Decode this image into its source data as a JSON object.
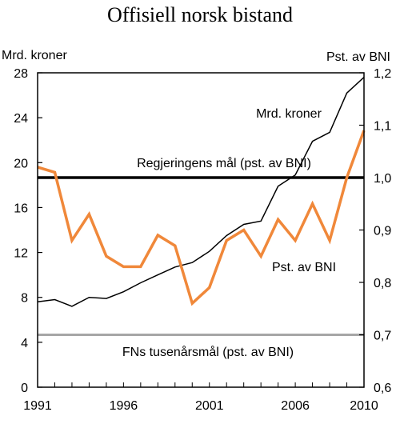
{
  "chart_data": {
    "type": "line",
    "title": "Offisiell norsk bistand",
    "ylabel_left": "Mrd. kroner",
    "ylabel_right": "Pst. av BNI",
    "xlim": [
      1991,
      2010
    ],
    "ylim_left": [
      0,
      28
    ],
    "ylim_right": [
      0.6,
      1.2
    ],
    "x_ticks": [
      {
        "value": 1991,
        "label": "1991"
      },
      {
        "value": 1996,
        "label": "1996"
      },
      {
        "value": 2001,
        "label": "2001"
      },
      {
        "value": 2006,
        "label": "2006"
      },
      {
        "value": 2010,
        "label": "2010"
      }
    ],
    "y_ticks_left": [
      {
        "value": 0,
        "label": "0"
      },
      {
        "value": 4,
        "label": "4"
      },
      {
        "value": 8,
        "label": "8"
      },
      {
        "value": 12,
        "label": "12"
      },
      {
        "value": 16,
        "label": "16"
      },
      {
        "value": 20,
        "label": "20"
      },
      {
        "value": 24,
        "label": "24"
      },
      {
        "value": 28,
        "label": "28"
      }
    ],
    "y_ticks_right": [
      {
        "value": 0.6,
        "label": "0,6"
      },
      {
        "value": 0.7,
        "label": "0,7"
      },
      {
        "value": 0.8,
        "label": "0,8"
      },
      {
        "value": 0.9,
        "label": "0,9"
      },
      {
        "value": 1.0,
        "label": "1,0"
      },
      {
        "value": 1.1,
        "label": "1,1"
      },
      {
        "value": 1.2,
        "label": "1,2"
      }
    ],
    "series": [
      {
        "name": "Mrd. kroner",
        "axis": "left",
        "color": "#000000",
        "x": [
          1991,
          1992,
          1993,
          1994,
          1995,
          1996,
          1997,
          1998,
          1999,
          2000,
          2001,
          2002,
          2003,
          2004,
          2005,
          2006,
          2007,
          2008,
          2009,
          2010
        ],
        "values": [
          7.6,
          7.8,
          7.2,
          8.0,
          7.9,
          8.5,
          9.3,
          10.0,
          10.7,
          11.1,
          12.1,
          13.5,
          14.5,
          14.8,
          17.9,
          18.9,
          21.9,
          22.7,
          26.2,
          27.6
        ]
      },
      {
        "name": "Pst. av BNI",
        "axis": "right",
        "color": "#f0883a",
        "x": [
          1991,
          1992,
          1993,
          1994,
          1995,
          1996,
          1997,
          1998,
          1999,
          2000,
          2001,
          2002,
          2003,
          2004,
          2005,
          2006,
          2007,
          2008,
          2009,
          2010
        ],
        "values": [
          1.02,
          1.01,
          0.88,
          0.93,
          0.85,
          0.83,
          0.83,
          0.89,
          0.87,
          0.76,
          0.79,
          0.88,
          0.9,
          0.85,
          0.92,
          0.88,
          0.95,
          0.88,
          1.0,
          1.09
        ]
      }
    ],
    "reference_lines": [
      {
        "axis": "right",
        "value": 1.0,
        "label": "Regjeringens mål (pst. av BNI)",
        "color": "#000000"
      },
      {
        "axis": "right",
        "value": 0.7,
        "label": "FNs tusenårsmål (pst. av BNI)",
        "color": "#a6a6a6"
      }
    ],
    "grid": false
  }
}
